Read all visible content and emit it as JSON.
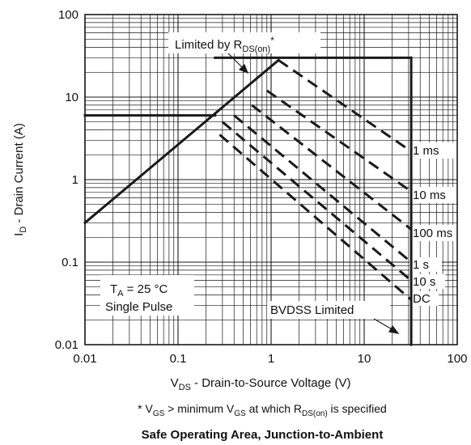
{
  "chart_data": {
    "type": "line",
    "title": "Safe Operating Area, Junction-to-Ambient",
    "footnote": {
      "star": "* V",
      "gs1_sub": "GS",
      "middle": " > minimum V",
      "gs2_sub": "GS",
      "after": " at which R",
      "rds_sub": "DS(on)",
      "end": " is specified"
    },
    "xlabel": {
      "main": "V",
      "sub": "DS",
      "rest": " - Drain-to-Source Voltage (V)"
    },
    "ylabel": {
      "main": "I",
      "sub": "D",
      "rest": " - Drain Current (A)"
    },
    "x_scale": "log",
    "y_scale": "log",
    "xlim": [
      0.01,
      100
    ],
    "ylim": [
      0.01,
      100
    ],
    "grid": true,
    "x_ticks": [
      "0.01",
      "0.1",
      "1",
      "10",
      "100"
    ],
    "y_ticks": [
      "0.01",
      "0.1",
      "1",
      "10",
      "100"
    ],
    "boundary_lines": [
      {
        "name": "current-limit-30A",
        "points": [
          [
            0.25,
            30
          ],
          [
            32,
            30
          ]
        ]
      },
      {
        "name": "current-limit-6A",
        "points": [
          [
            0.01,
            6
          ],
          [
            0.25,
            6
          ]
        ]
      },
      {
        "name": "rds-on-limit",
        "points": [
          [
            0.01,
            0.3
          ],
          [
            1.2,
            28
          ]
        ]
      },
      {
        "name": "bvdss-limit",
        "points": [
          [
            32,
            0.01
          ],
          [
            32,
            30
          ]
        ]
      }
    ],
    "series": [
      {
        "name": "1 ms",
        "points": [
          [
            1.2,
            28
          ],
          [
            32,
            2.2
          ]
        ]
      },
      {
        "name": "10 ms",
        "points": [
          [
            0.9,
            12
          ],
          [
            32,
            0.72
          ]
        ]
      },
      {
        "name": "100 ms",
        "points": [
          [
            0.62,
            8
          ],
          [
            32,
            0.25
          ]
        ]
      },
      {
        "name": "1 s",
        "points": [
          [
            0.4,
            6
          ],
          [
            32,
            0.1
          ]
        ]
      },
      {
        "name": "10 s",
        "points": [
          [
            0.3,
            5
          ],
          [
            32,
            0.06
          ]
        ]
      },
      {
        "name": "DC",
        "points": [
          [
            0.28,
            3.5
          ],
          [
            32,
            0.035
          ]
        ]
      }
    ],
    "annotations": {
      "rds_main": "Limited by R",
      "rds_sub": "DS(on)",
      "rds_star": "*",
      "ta_main": "T",
      "ta_sub": "A",
      "ta_rest": " = 25 °C",
      "single_pulse": "Single Pulse",
      "bvdss": "BVDSS Limited"
    },
    "colors": {
      "line": "#1a1a1a",
      "grid": "#1a1a1a",
      "background": "#ffffff"
    }
  }
}
